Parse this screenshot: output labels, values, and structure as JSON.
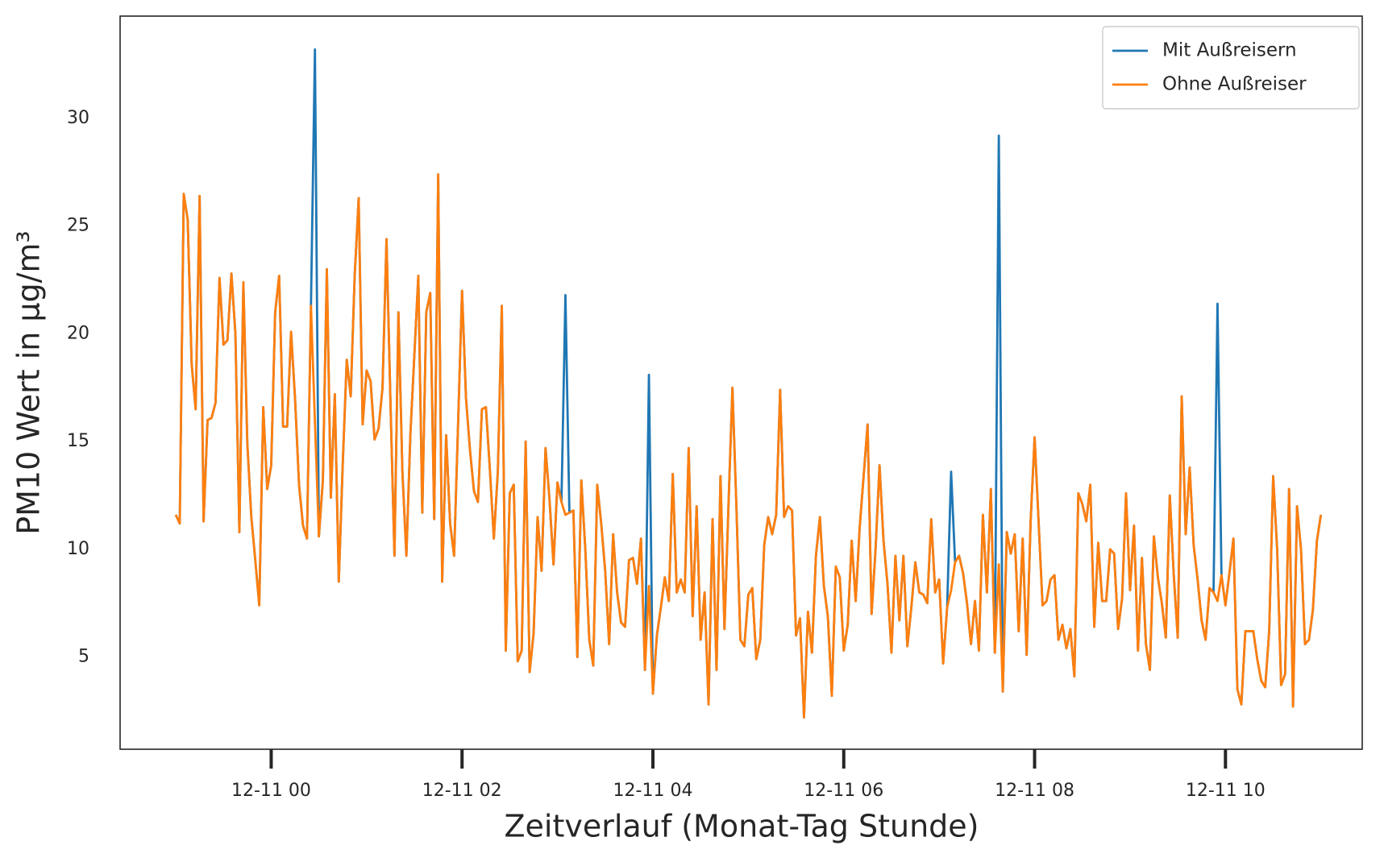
{
  "chart_data": {
    "type": "line",
    "xlabel": "Zeitverlauf (Monat-Tag Stunde)",
    "ylabel": "PM10 Wert in µg/m³",
    "legend": "upper right",
    "xlim": [
      -95,
      686
    ],
    "ylim": [
      0.72,
      34.75
    ],
    "xticks": [
      {
        "value": 0,
        "label": "12-11 00"
      },
      {
        "value": 120,
        "label": "12-11 02"
      },
      {
        "value": 240,
        "label": "12-11 04"
      },
      {
        "value": 360,
        "label": "12-11 06"
      },
      {
        "value": 480,
        "label": "12-11 08"
      },
      {
        "value": 600,
        "label": "12-11 10"
      }
    ],
    "yticks": [
      5,
      10,
      15,
      20,
      25,
      30
    ],
    "x": [
      -60,
      -57.5,
      -55,
      -52.5,
      -50,
      -47.5,
      -45,
      -42.5,
      -40,
      -37.5,
      -35,
      -32.5,
      -30,
      -27.5,
      -25,
      -22.5,
      -20,
      -17.5,
      -15,
      -12.5,
      -10,
      -7.5,
      -5,
      -2.5,
      0,
      2.5,
      5,
      7.5,
      10,
      12.5,
      15,
      17.5,
      20,
      22.5,
      25,
      27.5,
      30,
      32.5,
      35,
      37.5,
      40,
      42.5,
      45,
      47.5,
      50,
      52.5,
      55,
      57.5,
      60,
      62.5,
      65,
      67.5,
      70,
      72.5,
      75,
      77.5,
      80,
      82.5,
      85,
      87.5,
      90,
      92.5,
      95,
      97.5,
      100,
      102.5,
      105,
      107.5,
      110,
      112.5,
      115,
      117.5,
      120,
      122.5,
      125,
      127.5,
      130,
      132.5,
      135,
      137.5,
      140,
      142.5,
      145,
      147.5,
      150,
      152.5,
      155,
      157.5,
      160,
      162.5,
      165,
      167.5,
      170,
      172.5,
      175,
      177.5,
      180,
      182.5,
      185,
      187.5,
      190,
      192.5,
      195,
      197.5,
      200,
      202.5,
      205,
      207.5,
      210,
      212.5,
      215,
      217.5,
      220,
      222.5,
      225,
      227.5,
      230,
      232.5,
      235,
      237.5,
      240,
      242.5,
      245,
      247.5,
      250,
      252.5,
      255,
      257.5,
      260,
      262.5,
      265,
      267.5,
      270,
      272.5,
      275,
      277.5,
      280,
      282.5,
      285,
      287.5,
      290,
      292.5,
      295,
      297.5,
      300,
      302.5,
      305,
      307.5,
      310,
      312.5,
      315,
      317.5,
      320,
      322.5,
      325,
      327.5,
      330,
      332.5,
      335,
      337.5,
      340,
      342.5,
      345,
      347.5,
      350,
      352.5,
      355,
      357.5,
      360,
      362.5,
      365,
      367.5,
      370,
      372.5,
      375,
      377.5,
      380,
      382.5,
      385,
      387.5,
      390,
      392.5,
      395,
      397.5,
      400,
      402.5,
      405,
      407.5,
      410,
      412.5,
      415,
      417.5,
      420,
      422.5,
      425,
      427.5,
      430,
      432.5,
      435,
      437.5,
      440,
      442.5,
      445,
      447.5,
      450,
      452.5,
      455,
      457.5,
      460,
      462.5,
      465,
      467.5,
      470,
      472.5,
      475,
      477.5,
      480,
      482.5,
      485,
      487.5,
      490,
      492.5,
      495,
      497.5,
      500,
      502.5,
      505,
      507.5,
      510,
      512.5,
      515,
      517.5,
      520,
      522.5,
      525,
      527.5,
      530,
      532.5,
      535,
      537.5,
      540,
      542.5,
      545,
      547.5,
      550,
      552.5,
      555,
      557.5,
      560,
      562.5,
      565,
      567.5,
      570,
      572.5,
      575,
      577.5,
      580,
      582.5,
      585,
      587.5,
      590,
      592.5,
      595,
      597.5,
      600,
      602.5,
      605,
      607.5,
      610,
      612.5,
      615,
      617.5,
      620,
      622.5,
      625,
      627.5,
      630,
      632.5,
      635,
      637.5,
      640,
      642.5,
      645,
      647.5,
      650,
      652.5,
      655,
      657.5,
      660
    ],
    "series": [
      {
        "name": "Mit Außreisern",
        "color": "#1f77b4",
        "values": [
          11.6,
          11.2,
          26.5,
          25.3,
          18.6,
          16.5,
          26.4,
          11.3,
          16,
          16.1,
          16.8,
          22.6,
          19.5,
          19.7,
          22.8,
          20,
          10.8,
          22.4,
          14.9,
          11.5,
          9.5,
          7.4,
          16.6,
          12.8,
          13.9,
          21,
          22.7,
          15.7,
          15.7,
          20.1,
          17,
          13,
          11.1,
          10.5,
          21.3,
          33.2,
          10.6,
          13.2,
          23,
          12.4,
          17.2,
          8.5,
          14,
          18.8,
          17.1,
          22.7,
          26.3,
          15.8,
          18.3,
          17.8,
          15.1,
          15.6,
          17.5,
          24.4,
          16.8,
          9.7,
          21,
          13.6,
          9.7,
          15.3,
          19,
          22.7,
          11.7,
          21,
          21.9,
          11.4,
          27.4,
          8.5,
          15.3,
          11.2,
          9.7,
          15.8,
          22,
          17,
          14.6,
          12.7,
          12.2,
          16.5,
          16.6,
          13.7,
          10.5,
          13.6,
          21.3,
          5.3,
          12.6,
          13,
          4.8,
          5.3,
          15,
          4.3,
          6.1,
          11.5,
          9,
          14.7,
          12.3,
          9.3,
          13.1,
          12.2,
          21.8,
          11.7,
          11.8,
          5,
          13.2,
          10,
          5.8,
          4.6,
          13,
          11.2,
          9,
          5.6,
          10.7,
          8,
          6.6,
          6.4,
          9.5,
          9.6,
          8.4,
          10.5,
          4.4,
          18.1,
          3.3,
          6,
          7.3,
          8.7,
          7.6,
          13.5,
          8,
          8.6,
          8,
          14.7,
          6.9,
          12,
          5.8,
          8,
          2.8,
          11.4,
          4.4,
          13.4,
          6.3,
          12,
          17.5,
          12,
          5.8,
          5.5,
          7.9,
          8.2,
          4.9,
          5.8,
          10.2,
          11.5,
          10.7,
          11.6,
          17.4,
          11.5,
          12,
          11.8,
          6,
          6.8,
          2.2,
          7.1,
          5.2,
          9.7,
          11.5,
          8.3,
          6.9,
          3.2,
          9.2,
          8.7,
          5.3,
          6.5,
          10.4,
          7.6,
          11,
          13.4,
          15.8,
          7,
          10,
          13.9,
          10.4,
          8.4,
          5.2,
          9.7,
          6.7,
          9.7,
          5.5,
          7.3,
          9.4,
          8,
          7.9,
          7.5,
          11.4,
          8,
          8.6,
          4.7,
          7.3,
          13.6,
          9.4,
          9.7,
          8.9,
          7.5,
          5.6,
          7.6,
          5.3,
          11.6,
          8,
          12.8,
          5.2,
          29.2,
          3.4,
          10.8,
          9.8,
          10.7,
          6.2,
          10.5,
          5.1,
          11.3,
          15.2,
          11.3,
          7.4,
          7.6,
          8.6,
          8.8,
          5.8,
          6.5,
          5.4,
          6.3,
          4.1,
          12.6,
          12.1,
          11.3,
          13,
          6.4,
          10.3,
          7.6,
          7.6,
          10,
          9.8,
          6.3,
          7.7,
          12.6,
          8.1,
          11.1,
          5.3,
          9.6,
          5.6,
          4.4,
          10.6,
          8.7,
          7.5,
          5.9,
          12.5,
          8.8,
          5.9,
          17.1,
          10.7,
          13.8,
          10.2,
          8.6,
          6.7,
          5.8,
          8.2,
          8,
          21.4,
          8.8,
          7.4,
          8.9,
          10.5,
          3.5,
          2.8,
          6.2,
          6.2,
          6.2,
          4.9,
          3.9,
          3.6,
          6.2,
          13.4,
          10,
          3.7,
          4.2,
          12.8,
          2.7,
          12,
          10,
          5.6,
          5.8,
          7.2,
          10.4,
          11.6
        ]
      },
      {
        "name": "Ohne Außreiser",
        "color": "#ff7f0e",
        "values": [
          11.6,
          11.2,
          26.5,
          25.3,
          18.6,
          16.5,
          26.4,
          11.3,
          16,
          16.1,
          16.8,
          22.6,
          19.5,
          19.7,
          22.8,
          20,
          10.8,
          22.4,
          14.9,
          11.5,
          9.5,
          7.4,
          16.6,
          12.8,
          13.9,
          21,
          22.7,
          15.7,
          15.7,
          20.1,
          17,
          13,
          11.1,
          10.5,
          21.3,
          15.9,
          10.6,
          13.2,
          23,
          12.4,
          17.2,
          8.5,
          14,
          18.8,
          17.1,
          22.7,
          26.3,
          15.8,
          18.3,
          17.8,
          15.1,
          15.6,
          17.5,
          24.4,
          16.8,
          9.7,
          21,
          13.6,
          9.7,
          15.3,
          19,
          22.7,
          11.7,
          21,
          21.9,
          11.4,
          27.4,
          8.5,
          15.3,
          11.2,
          9.7,
          15.8,
          22,
          17,
          14.6,
          12.7,
          12.2,
          16.5,
          16.6,
          13.7,
          10.5,
          13.6,
          21.3,
          5.3,
          12.6,
          13,
          4.8,
          5.3,
          15,
          4.3,
          6.1,
          11.5,
          9,
          14.7,
          12.3,
          9.3,
          13.1,
          12.2,
          11.6,
          11.7,
          11.8,
          5,
          13.2,
          10,
          5.8,
          4.6,
          13,
          11.2,
          9,
          5.6,
          10.7,
          8,
          6.6,
          6.4,
          9.5,
          9.6,
          8.4,
          10.5,
          4.4,
          8.3,
          3.3,
          6,
          7.3,
          8.7,
          7.6,
          13.5,
          8,
          8.6,
          8,
          14.7,
          6.9,
          12,
          5.8,
          8,
          2.8,
          11.4,
          4.4,
          13.4,
          6.3,
          12,
          17.5,
          12,
          5.8,
          5.5,
          7.9,
          8.2,
          4.9,
          5.8,
          10.2,
          11.5,
          10.7,
          11.6,
          17.4,
          11.5,
          12,
          11.8,
          6,
          6.8,
          2.2,
          7.1,
          5.2,
          9.7,
          11.5,
          8.3,
          6.9,
          3.2,
          9.2,
          8.7,
          5.3,
          6.5,
          10.4,
          7.6,
          11,
          13.4,
          15.8,
          7,
          10,
          13.9,
          10.4,
          8.4,
          5.2,
          9.7,
          6.7,
          9.7,
          5.5,
          7.3,
          9.4,
          8,
          7.9,
          7.5,
          11.4,
          8,
          8.6,
          4.7,
          7.3,
          8.1,
          9.4,
          9.7,
          8.9,
          7.5,
          5.6,
          7.6,
          5.3,
          11.6,
          8,
          12.8,
          5.2,
          9.3,
          3.4,
          10.8,
          9.8,
          10.7,
          6.2,
          10.5,
          5.1,
          11.3,
          15.2,
          11.3,
          7.4,
          7.6,
          8.6,
          8.8,
          5.8,
          6.5,
          5.4,
          6.3,
          4.1,
          12.6,
          12.1,
          11.3,
          13,
          6.4,
          10.3,
          7.6,
          7.6,
          10,
          9.8,
          6.3,
          7.7,
          12.6,
          8.1,
          11.1,
          5.3,
          9.6,
          5.6,
          4.4,
          10.6,
          8.7,
          7.5,
          5.9,
          12.5,
          8.8,
          5.9,
          17.1,
          10.7,
          13.8,
          10.2,
          8.6,
          6.7,
          5.8,
          8.2,
          8,
          7.6,
          8.8,
          7.4,
          8.9,
          10.5,
          3.5,
          2.8,
          6.2,
          6.2,
          6.2,
          4.9,
          3.9,
          3.6,
          6.2,
          13.4,
          10,
          3.7,
          4.2,
          12.8,
          2.7,
          12,
          10,
          5.6,
          5.8,
          7.2,
          10.4,
          11.6
        ]
      }
    ]
  }
}
